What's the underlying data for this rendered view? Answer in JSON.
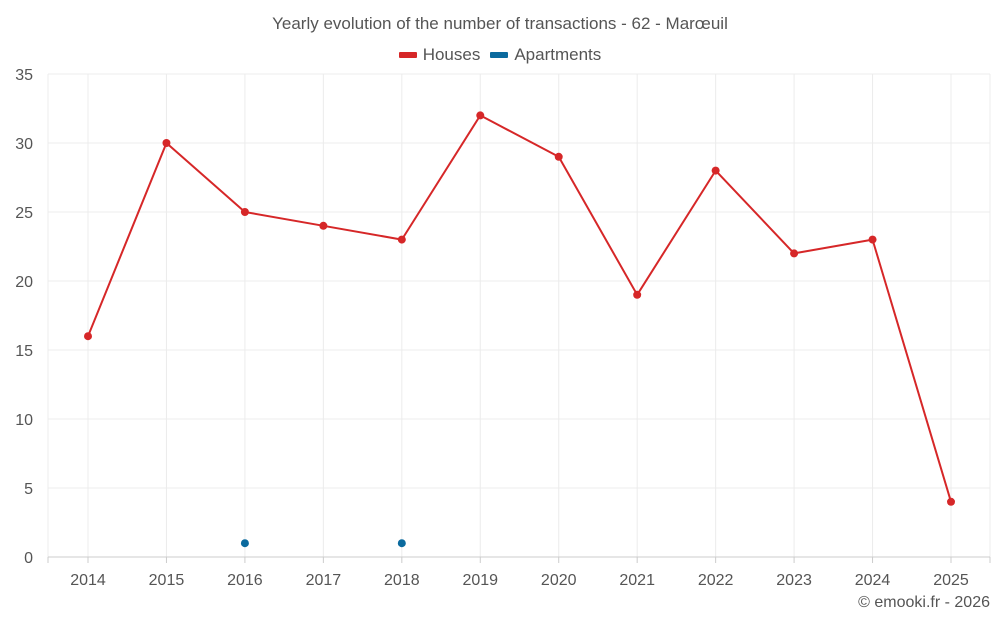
{
  "chart_data": {
    "type": "line",
    "title": "Yearly evolution of the number of transactions - 62 - Marœuil",
    "categories": [
      "2014",
      "2015",
      "2016",
      "2017",
      "2018",
      "2019",
      "2020",
      "2021",
      "2022",
      "2023",
      "2024",
      "2025"
    ],
    "series": [
      {
        "name": "Houses",
        "color": "#d62728",
        "values": [
          16,
          30,
          25,
          24,
          23,
          32,
          29,
          19,
          28,
          22,
          23,
          4
        ]
      },
      {
        "name": "Apartments",
        "color": "#0b6a9e",
        "values": [
          null,
          null,
          1,
          null,
          1,
          null,
          null,
          null,
          null,
          null,
          null,
          null
        ]
      }
    ],
    "y_ticks": [
      "0",
      "5",
      "10",
      "15",
      "20",
      "25",
      "30",
      "35"
    ],
    "ylim": [
      0,
      35
    ],
    "xlabel": "",
    "ylabel": "",
    "grid": true,
    "legend_position": "top-center"
  },
  "footer": {
    "copyright": "© emooki.fr - 2026"
  }
}
